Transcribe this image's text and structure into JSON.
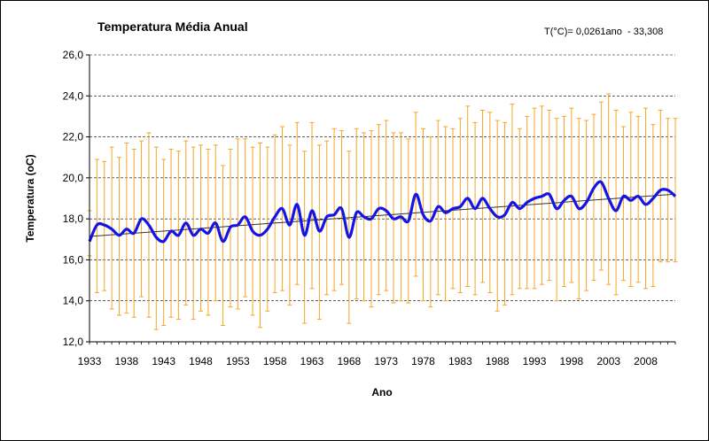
{
  "chart_data": {
    "type": "line",
    "title": "Temperatura Média Anual",
    "annotation": "T(°C)= 0,0261ano  - 33,308",
    "xlabel": "Ano",
    "ylabel": "Temperatura (oC)",
    "xlim": [
      1933,
      2012
    ],
    "ylim": [
      12,
      26
    ],
    "y_ticks": [
      "12,0",
      "14,0",
      "16,0",
      "18,0",
      "20,0",
      "22,0",
      "24,0",
      "26,0"
    ],
    "x_ticks": [
      "1933",
      "1938",
      "1943",
      "1948",
      "1953",
      "1958",
      "1963",
      "1968",
      "1973",
      "1978",
      "1983",
      "1988",
      "1993",
      "1998",
      "2003",
      "2008"
    ],
    "grid": true,
    "legend": "none",
    "years_start": 1933,
    "series": [
      {
        "values": [
          16.9,
          17.7,
          17.7,
          17.5,
          17.2,
          17.5,
          17.3,
          18.0,
          17.7,
          17.1,
          16.9,
          17.4,
          17.2,
          17.8,
          17.2,
          17.5,
          17.3,
          17.8,
          16.9,
          17.6,
          17.7,
          18.1,
          17.4,
          17.2,
          17.5,
          18.1,
          18.5,
          17.7,
          18.7,
          17.2,
          18.4,
          17.4,
          18.1,
          18.2,
          18.5,
          17.1,
          18.3,
          18.1,
          18.0,
          18.5,
          18.4,
          18.0,
          18.1,
          17.9,
          19.2,
          18.2,
          17.9,
          18.6,
          18.3,
          18.5,
          18.6,
          19.0,
          18.5,
          19.0,
          18.5,
          18.1,
          18.2,
          18.8,
          18.5,
          18.8,
          19.0,
          19.1,
          19.2,
          18.5,
          18.9,
          19.1,
          18.5,
          18.8,
          19.5,
          19.8,
          19.0,
          18.4,
          19.1,
          18.9,
          19.1,
          18.7,
          19.0,
          19.4,
          19.4,
          19.1
        ],
        "min": [
          16.2,
          14.4,
          14.5,
          13.6,
          13.3,
          13.4,
          13.2,
          14.2,
          13.2,
          12.6,
          12.8,
          13.2,
          13.1,
          13.8,
          13.1,
          13.5,
          13.3,
          14.0,
          12.8,
          13.7,
          13.6,
          14.2,
          13.3,
          12.7,
          13.5,
          14.4,
          14.5,
          13.8,
          14.8,
          12.9,
          14.6,
          13.1,
          14.3,
          14.5,
          14.8,
          12.9,
          14.1,
          14.0,
          13.7,
          14.3,
          14.5,
          13.9,
          14.0,
          13.9,
          15.2,
          14.0,
          13.7,
          14.3,
          14.0,
          14.6,
          14.4,
          14.7,
          14.3,
          14.9,
          14.4,
          13.5,
          13.8,
          14.3,
          14.6,
          14.6,
          14.6,
          14.8,
          15.0,
          14.0,
          14.7,
          14.9,
          14.1,
          14.5,
          15.0,
          15.5,
          14.8,
          14.3,
          15.0,
          14.7,
          14.9,
          14.6,
          14.7,
          15.9,
          15.9,
          15.9
        ],
        "max": [
          18.4,
          20.9,
          20.8,
          21.5,
          21.0,
          21.7,
          21.4,
          21.8,
          22.2,
          21.5,
          20.9,
          21.4,
          21.3,
          21.8,
          21.5,
          21.6,
          21.4,
          21.6,
          20.6,
          21.4,
          21.9,
          21.9,
          21.5,
          21.7,
          21.5,
          22.1,
          22.5,
          21.6,
          22.7,
          21.3,
          22.7,
          21.6,
          21.8,
          22.4,
          22.3,
          21.3,
          22.4,
          22.2,
          22.3,
          22.6,
          22.8,
          22.2,
          22.2,
          21.9,
          23.2,
          22.4,
          22.0,
          22.8,
          22.5,
          22.4,
          22.9,
          23.5,
          22.7,
          23.3,
          23.2,
          22.8,
          22.7,
          23.6,
          22.4,
          23.0,
          23.4,
          23.5,
          23.3,
          22.9,
          23.0,
          23.4,
          22.9,
          22.8,
          23.1,
          23.7,
          24.1,
          23.3,
          22.5,
          23.2,
          23.0,
          23.4,
          22.6,
          23.3,
          22.9,
          22.9
        ]
      }
    ],
    "trendline": {
      "slope": 0.0261,
      "intercept": -33.308
    },
    "colors": {
      "mean_line": "#1414e6",
      "range_bars": "#f5a623",
      "trend_line": "#333333",
      "grid": "#000000"
    }
  }
}
